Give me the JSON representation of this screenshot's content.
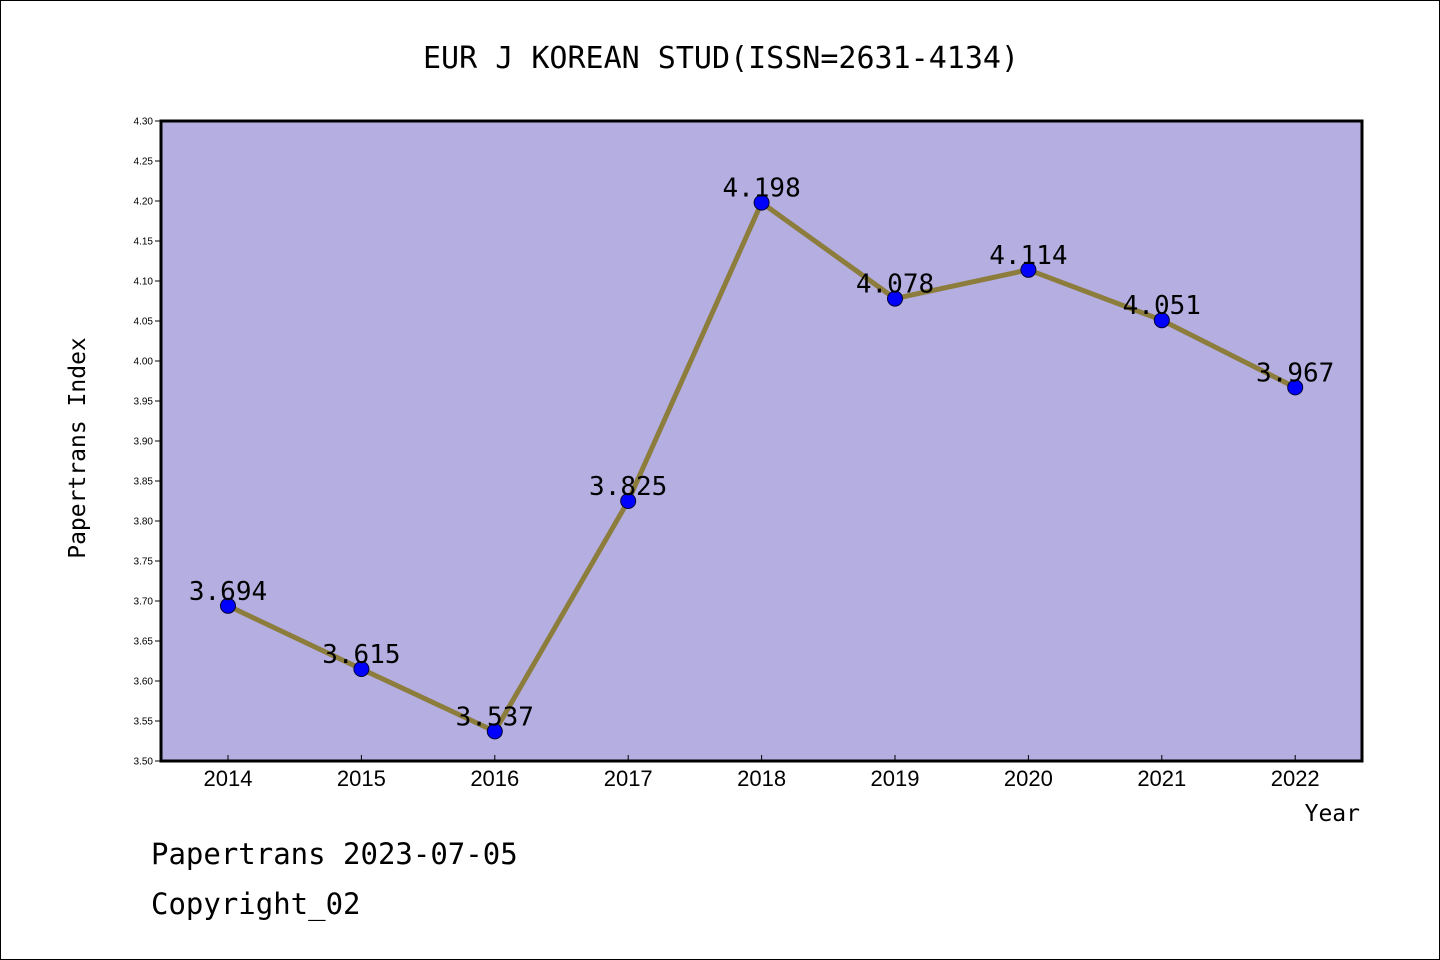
{
  "chart_data": {
    "type": "line",
    "title": "EUR J KOREAN STUD(ISSN=2631-4134)",
    "xlabel": "Year",
    "ylabel": "Papertrans Index",
    "categories": [
      "2014",
      "2015",
      "2016",
      "2017",
      "2018",
      "2019",
      "2020",
      "2021",
      "2022"
    ],
    "values": [
      3.694,
      3.615,
      3.537,
      3.825,
      4.198,
      4.078,
      4.114,
      4.051,
      3.967
    ],
    "data_labels": [
      "3.694",
      "3.615",
      "3.537",
      "3.825",
      "4.198",
      "4.078",
      "4.114",
      "4.051",
      "3.967"
    ],
    "ylim": [
      3.5,
      4.3
    ],
    "yticks": [
      "3.50",
      "3.55",
      "3.60",
      "3.65",
      "3.70",
      "3.75",
      "3.80",
      "3.85",
      "3.90",
      "3.95",
      "4.00",
      "4.05",
      "4.10",
      "4.15",
      "4.20",
      "4.25",
      "4.30"
    ],
    "grid": false,
    "colors": {
      "plot_background": "#b4aee1",
      "line": "#8c7d3c",
      "marker": "#0000ff"
    }
  },
  "footer": {
    "source": "Papertrans 2023-07-05",
    "copyright": "Copyright_02"
  }
}
